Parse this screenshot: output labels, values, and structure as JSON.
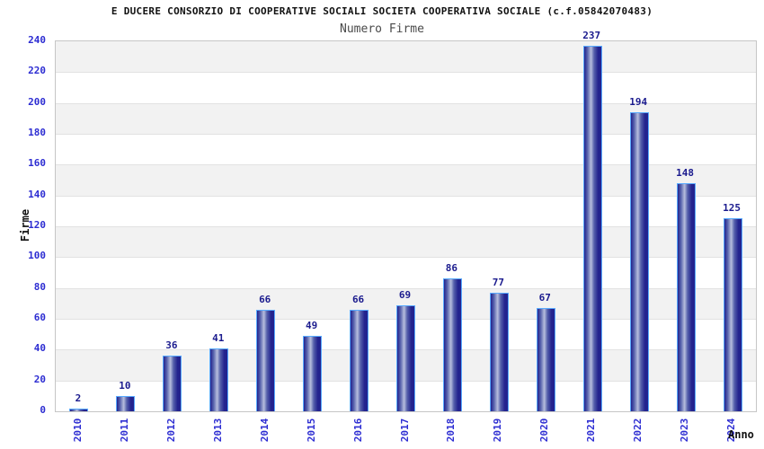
{
  "chart": {
    "title": "E DUCERE CONSORZIO DI COOPERATIVE SOCIALI SOCIETA COOPERATIVA SOCIALE (c.f.05842070483)",
    "subtitle": "Numero Firme",
    "xlabel": "Anno",
    "ylabel": "Firme"
  },
  "chart_data": {
    "type": "bar",
    "title": "E DUCERE CONSORZIO DI COOPERATIVE SOCIALI SOCIETA COOPERATIVA SOCIALE (c.f.05842070483)",
    "subtitle": "Numero Firme",
    "xlabel": "Anno",
    "ylabel": "Firme",
    "categories": [
      "2010",
      "2011",
      "2012",
      "2013",
      "2014",
      "2015",
      "2016",
      "2017",
      "2018",
      "2019",
      "2020",
      "2021",
      "2022",
      "2023",
      "2024"
    ],
    "values": [
      2,
      10,
      36,
      41,
      66,
      49,
      66,
      69,
      86,
      77,
      67,
      237,
      194,
      148,
      125
    ],
    "ylim": [
      0,
      240
    ],
    "ytick_step": 20,
    "grid": "horizontal-alternating-bands",
    "legend": "none",
    "colors": {
      "tick_label": "#2d2dd2",
      "value_label": "#1b1b8e",
      "bar_border": "#58aaff",
      "bar_dark": "#23238e",
      "bar_mid": "#5560ab",
      "bar_light": "#b7bedd",
      "band_gray": "#f2f2f2",
      "band_white": "#ffffff",
      "gridline": "#e2e2e2",
      "plot_border": "#c6c6c6",
      "title_color": "#111111",
      "subtitle_color": "#4a4a4a"
    }
  }
}
